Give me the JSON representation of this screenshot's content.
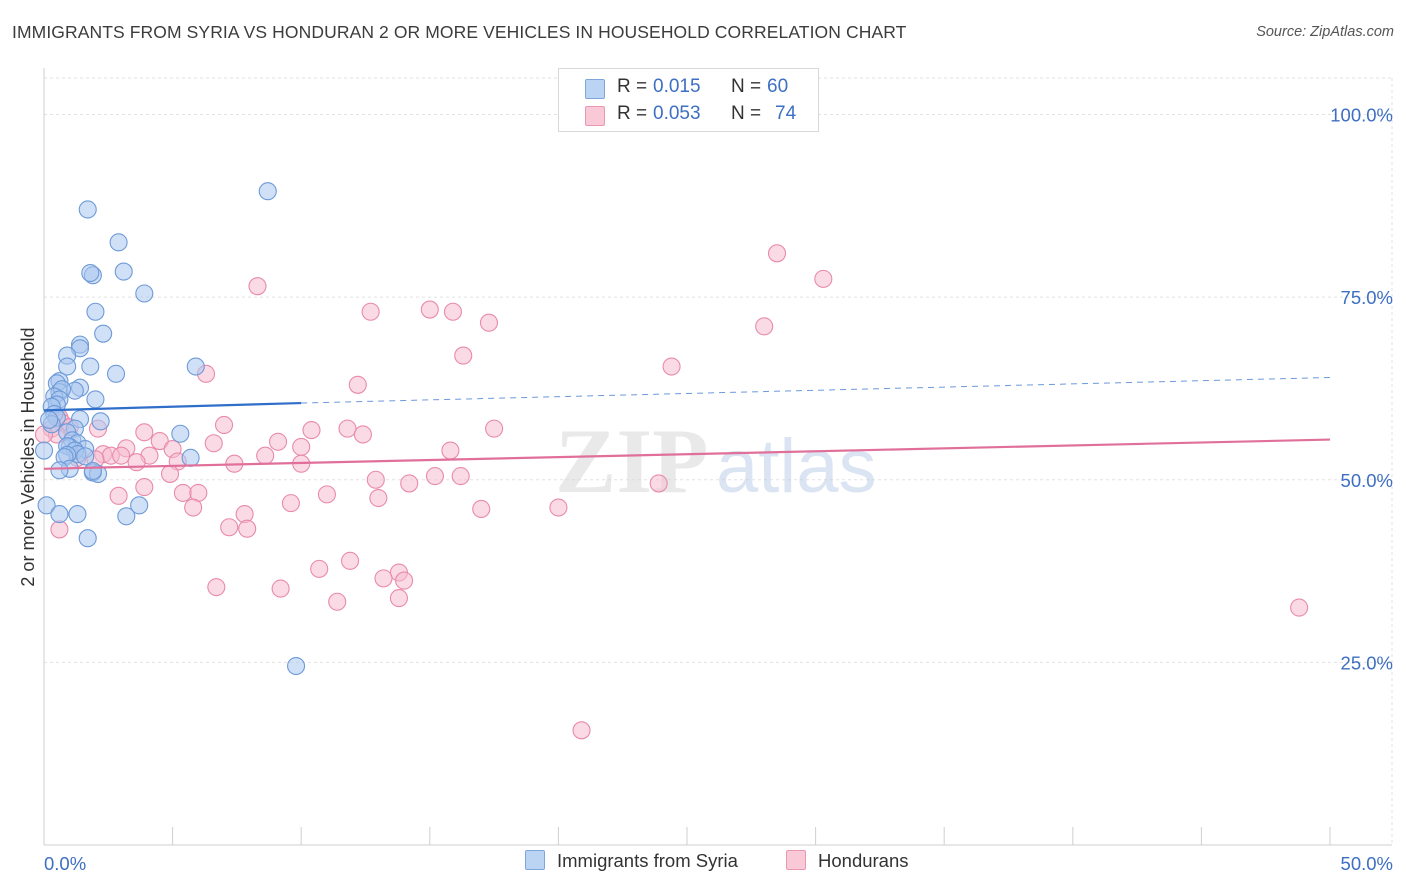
{
  "header": {
    "title": "IMMIGRANTS FROM SYRIA VS HONDURAN 2 OR MORE VEHICLES IN HOUSEHOLD CORRELATION CHART",
    "source": "Source: ZipAtlas.com"
  },
  "watermark": {
    "zip": "ZIP",
    "atlas": "atlas"
  },
  "stats_legend": [
    {
      "r_label": "R =",
      "r_value": "0.015",
      "n_label": "N =",
      "n_value": "60"
    },
    {
      "r_label": "R =",
      "r_value": "0.053",
      "n_label": "N =",
      "n_value": "74"
    }
  ],
  "colors": {
    "syria_fill": "#a9c7ef",
    "syria_stroke": "#6d9ad8",
    "syria_line": "#2f6ec9",
    "honduran_fill": "#f6bccf",
    "honduran_stroke": "#e98aab",
    "honduran_line": "#e0709a",
    "tick_label": "#3d6fc2",
    "grid": "#e2e2e2"
  },
  "chart_data": {
    "type": "scatter",
    "title": "IMMIGRANTS FROM SYRIA VS HONDURAN 2 OR MORE VEHICLES IN HOUSEHOLD CORRELATION CHART",
    "xlabel": "",
    "ylabel": "2 or more Vehicles in Household",
    "xlim": [
      0,
      50
    ],
    "ylim": [
      0,
      105
    ],
    "x_tick_labels": [
      "0.0%",
      "50.0%"
    ],
    "y_ticks": [
      25,
      50,
      75,
      100
    ],
    "y_tick_labels": [
      "25.0%",
      "50.0%",
      "75.0%",
      "100.0%"
    ],
    "grid": true,
    "legend_position": "bottom",
    "series": [
      {
        "name": "Immigrants from Syria",
        "r": 0.015,
        "n": 60,
        "trend": {
          "x": [
            0,
            10
          ],
          "y": [
            59.5,
            60.5
          ],
          "dashed_to": [
            50,
            64
          ]
        },
        "points": [
          [
            8.7,
            89.5
          ],
          [
            1.7,
            87
          ],
          [
            2.9,
            82.5
          ],
          [
            3.1,
            78.5
          ],
          [
            1.9,
            78
          ],
          [
            1.8,
            78.3
          ],
          [
            3.9,
            75.5
          ],
          [
            2.0,
            73
          ],
          [
            2.3,
            70
          ],
          [
            1.4,
            68.5
          ],
          [
            1.4,
            68
          ],
          [
            0.9,
            67
          ],
          [
            0.9,
            65.5
          ],
          [
            1.8,
            65.5
          ],
          [
            2.8,
            64.5
          ],
          [
            5.9,
            65.5
          ],
          [
            0.6,
            63.5
          ],
          [
            0.5,
            63.2
          ],
          [
            1.4,
            62.6
          ],
          [
            0.6,
            62
          ],
          [
            1.2,
            62.2
          ],
          [
            0.7,
            62.4
          ],
          [
            0.4,
            61.4
          ],
          [
            0.6,
            61
          ],
          [
            2.0,
            61
          ],
          [
            0.5,
            60.3
          ],
          [
            0.3,
            60
          ],
          [
            0.4,
            59
          ],
          [
            0.5,
            58.5
          ],
          [
            1.4,
            58.3
          ],
          [
            2.2,
            58
          ],
          [
            0.3,
            57.6
          ],
          [
            1.2,
            57
          ],
          [
            0.9,
            56.5
          ],
          [
            5.3,
            56.3
          ],
          [
            1.1,
            55.4
          ],
          [
            1.3,
            55
          ],
          [
            1.0,
            54.5
          ],
          [
            1.6,
            54.2
          ],
          [
            0.9,
            54.6
          ],
          [
            0.0,
            54
          ],
          [
            1.2,
            54
          ],
          [
            1.3,
            53.5
          ],
          [
            1.6,
            53.2
          ],
          [
            0.9,
            53.4
          ],
          [
            0.8,
            53.1
          ],
          [
            5.7,
            53
          ],
          [
            1.0,
            51.5
          ],
          [
            0.6,
            51.3
          ],
          [
            1.9,
            51
          ],
          [
            2.1,
            50.8
          ],
          [
            1.9,
            51.2
          ],
          [
            3.7,
            46.5
          ],
          [
            0.1,
            46.5
          ],
          [
            0.6,
            45.3
          ],
          [
            1.3,
            45.3
          ],
          [
            3.2,
            45
          ],
          [
            1.7,
            42
          ],
          [
            9.8,
            24.5
          ],
          [
            0.2,
            58.2
          ]
        ]
      },
      {
        "name": "Hondurans",
        "r": 0.053,
        "n": 74,
        "trend": {
          "x": [
            0,
            50
          ],
          "y": [
            51.5,
            55.5
          ]
        },
        "points": [
          [
            28.5,
            81
          ],
          [
            30.3,
            77.5
          ],
          [
            8.3,
            76.5
          ],
          [
            12.7,
            73
          ],
          [
            15.0,
            73.3
          ],
          [
            15.9,
            73
          ],
          [
            17.3,
            71.5
          ],
          [
            28.0,
            71
          ],
          [
            16.3,
            67
          ],
          [
            24.4,
            65.5
          ],
          [
            6.3,
            64.5
          ],
          [
            12.2,
            63
          ],
          [
            0.6,
            58.5
          ],
          [
            0.7,
            57.8
          ],
          [
            7.0,
            57.5
          ],
          [
            1.0,
            57.2
          ],
          [
            2.1,
            57
          ],
          [
            0.3,
            57
          ],
          [
            10.4,
            56.8
          ],
          [
            11.8,
            57
          ],
          [
            17.5,
            57
          ],
          [
            3.9,
            56.5
          ],
          [
            12.4,
            56.2
          ],
          [
            0.5,
            56.2
          ],
          [
            4.5,
            55.3
          ],
          [
            9.1,
            55.2
          ],
          [
            6.6,
            55.0
          ],
          [
            10.0,
            54.5
          ],
          [
            3.2,
            54.3
          ],
          [
            5.0,
            54.2
          ],
          [
            15.8,
            54
          ],
          [
            2.3,
            53.5
          ],
          [
            2.6,
            53.3
          ],
          [
            3.0,
            53.3
          ],
          [
            4.1,
            53.3
          ],
          [
            8.6,
            53.3
          ],
          [
            1.3,
            53
          ],
          [
            2.0,
            52.8
          ],
          [
            3.6,
            52.4
          ],
          [
            5.2,
            52.5
          ],
          [
            7.4,
            52.2
          ],
          [
            10.0,
            52.2
          ],
          [
            4.9,
            50.8
          ],
          [
            15.2,
            50.5
          ],
          [
            16.2,
            50.5
          ],
          [
            12.9,
            50
          ],
          [
            14.2,
            49.5
          ],
          [
            23.9,
            49.5
          ],
          [
            3.9,
            49
          ],
          [
            5.4,
            48.2
          ],
          [
            6.0,
            48.2
          ],
          [
            2.9,
            47.8
          ],
          [
            9.6,
            46.8
          ],
          [
            13.0,
            47.5
          ],
          [
            11.0,
            48
          ],
          [
            20.0,
            46.2
          ],
          [
            17.0,
            46
          ],
          [
            5.8,
            46.2
          ],
          [
            7.8,
            45.3
          ],
          [
            7.2,
            43.5
          ],
          [
            7.9,
            43.3
          ],
          [
            0.6,
            43.2
          ],
          [
            11.9,
            38.9
          ],
          [
            10.7,
            37.8
          ],
          [
            13.8,
            37.3
          ],
          [
            13.2,
            36.5
          ],
          [
            14.0,
            36.2
          ],
          [
            6.7,
            35.3
          ],
          [
            9.2,
            35.1
          ],
          [
            11.4,
            33.3
          ],
          [
            13.8,
            33.8
          ],
          [
            48.8,
            32.5
          ],
          [
            20.9,
            15.7
          ],
          [
            0.0,
            56.2
          ]
        ]
      }
    ]
  }
}
